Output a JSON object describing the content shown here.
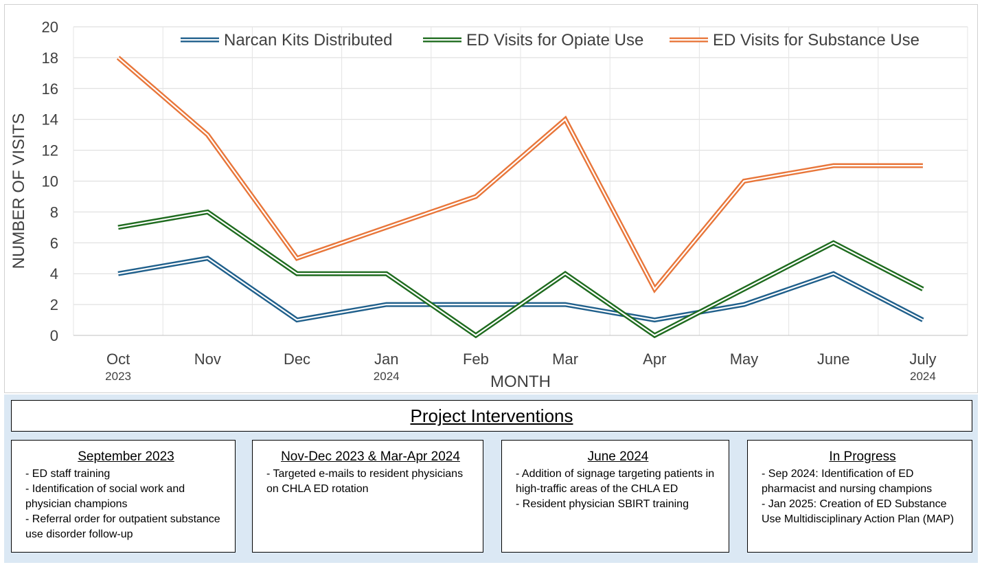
{
  "chart_data": {
    "type": "line",
    "categories": [
      "Oct",
      "Nov",
      "Dec",
      "Jan",
      "Feb",
      "Mar",
      "Apr",
      "May",
      "June",
      "July"
    ],
    "year_labels": [
      "2023",
      "",
      "",
      "2024",
      "",
      "",
      "",
      "",
      "",
      "2024"
    ],
    "xlabel": "MONTH",
    "ylabel": "NUMBER OF VISITS",
    "ylim": [
      0,
      20
    ],
    "yticks": [
      0,
      2,
      4,
      6,
      8,
      10,
      12,
      14,
      16,
      18,
      20
    ],
    "grid": true,
    "legend_position": "top",
    "series": [
      {
        "name": "Narcan Kits Distributed",
        "color": "#1f5f8b",
        "values": [
          4,
          5,
          1,
          2,
          2,
          2,
          1,
          2,
          4,
          1
        ]
      },
      {
        "name": "ED Visits for Opiate Use",
        "color": "#1e6b1e",
        "values": [
          7,
          8,
          4,
          4,
          0,
          4,
          0,
          3,
          6,
          3
        ]
      },
      {
        "name": "ED Visits for Substance Use",
        "color": "#e8763a",
        "values": [
          18,
          13,
          5,
          7,
          9,
          14,
          3,
          10,
          11,
          11
        ]
      }
    ]
  },
  "interventions": {
    "title": "Project Interventions",
    "cards": [
      {
        "title": "September 2023",
        "lines": [
          "- ED staff training",
          "- Identification of social work and physician champions",
          "- Referral order for outpatient substance use disorder follow-up"
        ]
      },
      {
        "title": "Nov-Dec 2023 & Mar-Apr 2024",
        "lines": [
          "- Targeted e-mails to resident physicians on CHLA ED rotation"
        ]
      },
      {
        "title": "June 2024",
        "lines": [
          "- Addition of signage targeting patients in high-traffic areas of the CHLA ED",
          "- Resident physician SBIRT training"
        ]
      },
      {
        "title": "In Progress",
        "lines": [
          "- Sep 2024: Identification of ED pharmacist and nursing champions",
          "- Jan 2025: Creation of ED Substance Use Multidisciplinary Action Plan (MAP)"
        ]
      }
    ]
  }
}
